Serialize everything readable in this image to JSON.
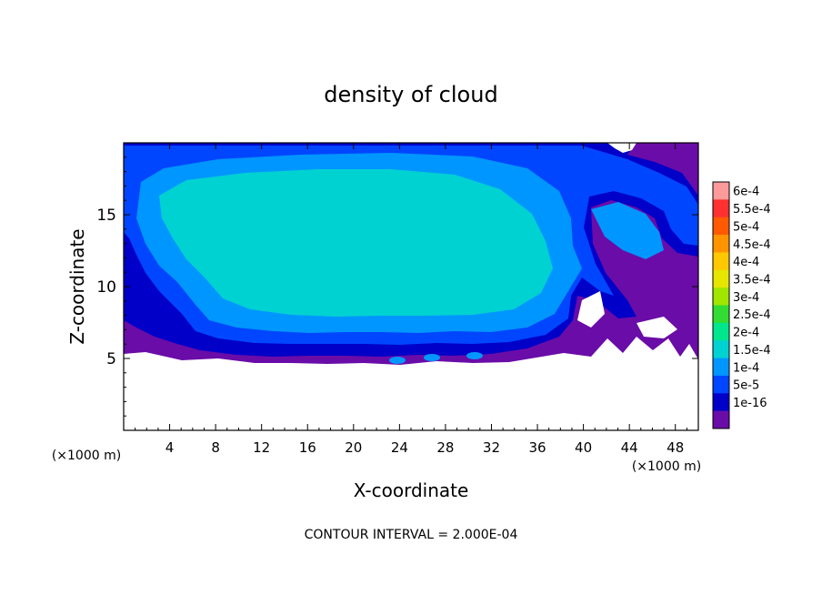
{
  "chart_data": {
    "type": "heatmap",
    "title": "density of cloud",
    "xlabel": "X-coordinate",
    "ylabel": "Z-coordinate",
    "x_unit_left": "(×1000 m)",
    "x_unit_right": "(×1000 m)",
    "xlim": [
      0,
      50
    ],
    "ylim": [
      0,
      20
    ],
    "x_ticks": [
      4,
      8,
      12,
      16,
      20,
      24,
      28,
      32,
      36,
      40,
      44,
      48
    ],
    "y_ticks": [
      5,
      10,
      15
    ],
    "footer": "CONTOUR INTERVAL = 2.000E-04",
    "colorbar": {
      "labels": [
        "6e-4",
        "5.5e-4",
        "5e-4",
        "4.5e-4",
        "4e-4",
        "3.5e-4",
        "3e-4",
        "2.5e-4",
        "2e-4",
        "1.5e-4",
        "1e-4",
        "5e-5",
        "1e-16"
      ],
      "colors": [
        "#ff9a9a",
        "#ff3030",
        "#ff5a00",
        "#ff9400",
        "#ffc800",
        "#e6e600",
        "#a0e600",
        "#32dc32",
        "#00e68c",
        "#00d2d2",
        "#0096ff",
        "#0046ff",
        "#0000c8",
        "#6a0ca8"
      ]
    },
    "regions": [
      {
        "name": "cloud-edge-purple",
        "color": "#6a0ca8"
      },
      {
        "name": "cloud-outer-navy",
        "color": "#0000c8"
      },
      {
        "name": "cloud-blue",
        "color": "#0046ff"
      },
      {
        "name": "cloud-mid-blue",
        "color": "#0096ff"
      },
      {
        "name": "cloud-core-cyan",
        "color": "#00d2d2"
      }
    ]
  }
}
